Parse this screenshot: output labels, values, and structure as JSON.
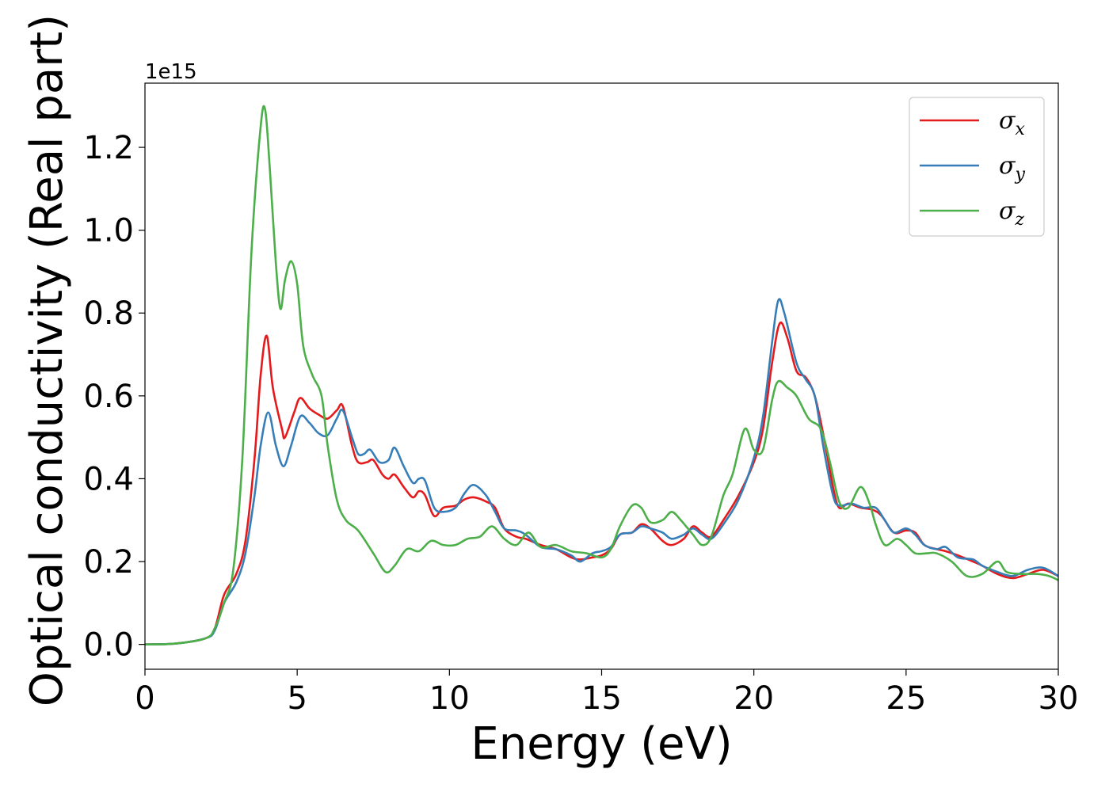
{
  "chart_data": {
    "type": "line",
    "xlabel": "Energy (eV)",
    "ylabel": "Optical conductivity (Real part)",
    "y_offset_label": "1e15",
    "xlim": [
      0,
      30
    ],
    "ylim": [
      -0.06,
      1.355
    ],
    "x_ticks": [
      0,
      5,
      10,
      15,
      20,
      25,
      30
    ],
    "x_tick_labels": [
      "0",
      "5",
      "10",
      "15",
      "20",
      "25",
      "30"
    ],
    "y_ticks": [
      0.0,
      0.2,
      0.4,
      0.6,
      0.8,
      1.0,
      1.2
    ],
    "y_tick_labels": [
      "0.0",
      "0.2",
      "0.4",
      "0.6",
      "0.8",
      "1.0",
      "1.2"
    ],
    "grid": false,
    "legend_position": "top-right",
    "series": [
      {
        "name": "σx",
        "legend_symbol": "σ",
        "legend_subscript": "x",
        "color": "#e41a1c",
        "points": [
          [
            0,
            0
          ],
          [
            1,
            0.002
          ],
          [
            2,
            0.015
          ],
          [
            2.3,
            0.04
          ],
          [
            2.6,
            0.12
          ],
          [
            3.0,
            0.17
          ],
          [
            3.3,
            0.25
          ],
          [
            3.6,
            0.45
          ],
          [
            3.8,
            0.65
          ],
          [
            4.0,
            0.745
          ],
          [
            4.2,
            0.62
          ],
          [
            4.5,
            0.52
          ],
          [
            4.6,
            0.5
          ],
          [
            4.9,
            0.56
          ],
          [
            5.1,
            0.595
          ],
          [
            5.4,
            0.57
          ],
          [
            5.7,
            0.555
          ],
          [
            6.0,
            0.545
          ],
          [
            6.3,
            0.565
          ],
          [
            6.5,
            0.575
          ],
          [
            6.8,
            0.48
          ],
          [
            7.0,
            0.44
          ],
          [
            7.3,
            0.44
          ],
          [
            7.5,
            0.445
          ],
          [
            7.8,
            0.41
          ],
          [
            8.0,
            0.4
          ],
          [
            8.2,
            0.41
          ],
          [
            8.5,
            0.38
          ],
          [
            8.8,
            0.355
          ],
          [
            9.0,
            0.37
          ],
          [
            9.2,
            0.36
          ],
          [
            9.5,
            0.31
          ],
          [
            9.8,
            0.33
          ],
          [
            10.2,
            0.335
          ],
          [
            10.5,
            0.35
          ],
          [
            10.8,
            0.355
          ],
          [
            11.2,
            0.345
          ],
          [
            11.5,
            0.33
          ],
          [
            11.8,
            0.28
          ],
          [
            12.2,
            0.26
          ],
          [
            12.5,
            0.255
          ],
          [
            13.0,
            0.24
          ],
          [
            13.5,
            0.23
          ],
          [
            14.0,
            0.21
          ],
          [
            14.3,
            0.205
          ],
          [
            14.7,
            0.21
          ],
          [
            15.0,
            0.215
          ],
          [
            15.3,
            0.23
          ],
          [
            15.6,
            0.265
          ],
          [
            16.0,
            0.27
          ],
          [
            16.3,
            0.29
          ],
          [
            16.6,
            0.28
          ],
          [
            17.0,
            0.25
          ],
          [
            17.3,
            0.24
          ],
          [
            17.7,
            0.255
          ],
          [
            18.0,
            0.285
          ],
          [
            18.3,
            0.27
          ],
          [
            18.6,
            0.26
          ],
          [
            19.0,
            0.3
          ],
          [
            19.5,
            0.36
          ],
          [
            20.0,
            0.44
          ],
          [
            20.3,
            0.52
          ],
          [
            20.6,
            0.68
          ],
          [
            20.85,
            0.775
          ],
          [
            21.1,
            0.74
          ],
          [
            21.4,
            0.66
          ],
          [
            21.7,
            0.645
          ],
          [
            22.0,
            0.6
          ],
          [
            22.3,
            0.5
          ],
          [
            22.6,
            0.38
          ],
          [
            22.8,
            0.33
          ],
          [
            23.1,
            0.34
          ],
          [
            23.5,
            0.33
          ],
          [
            23.9,
            0.325
          ],
          [
            24.2,
            0.31
          ],
          [
            24.6,
            0.27
          ],
          [
            25.0,
            0.275
          ],
          [
            25.3,
            0.27
          ],
          [
            25.6,
            0.24
          ],
          [
            26.0,
            0.23
          ],
          [
            26.3,
            0.225
          ],
          [
            26.7,
            0.215
          ],
          [
            27.2,
            0.2
          ],
          [
            27.5,
            0.19
          ],
          [
            28.0,
            0.17
          ],
          [
            28.5,
            0.16
          ],
          [
            29.0,
            0.17
          ],
          [
            29.5,
            0.18
          ],
          [
            30,
            0.165
          ]
        ]
      },
      {
        "name": "σy",
        "legend_symbol": "σ",
        "legend_subscript": "y",
        "color": "#377eb8",
        "points": [
          [
            0,
            0
          ],
          [
            1,
            0.002
          ],
          [
            2,
            0.015
          ],
          [
            2.3,
            0.035
          ],
          [
            2.6,
            0.1
          ],
          [
            3.0,
            0.15
          ],
          [
            3.3,
            0.22
          ],
          [
            3.6,
            0.36
          ],
          [
            3.8,
            0.48
          ],
          [
            4.05,
            0.56
          ],
          [
            4.3,
            0.48
          ],
          [
            4.55,
            0.43
          ],
          [
            4.8,
            0.48
          ],
          [
            5.1,
            0.55
          ],
          [
            5.4,
            0.535
          ],
          [
            5.7,
            0.51
          ],
          [
            6.0,
            0.505
          ],
          [
            6.3,
            0.545
          ],
          [
            6.5,
            0.565
          ],
          [
            6.8,
            0.5
          ],
          [
            7.0,
            0.46
          ],
          [
            7.2,
            0.46
          ],
          [
            7.4,
            0.47
          ],
          [
            7.7,
            0.44
          ],
          [
            8.0,
            0.445
          ],
          [
            8.2,
            0.475
          ],
          [
            8.5,
            0.43
          ],
          [
            8.8,
            0.39
          ],
          [
            9.0,
            0.4
          ],
          [
            9.2,
            0.395
          ],
          [
            9.5,
            0.33
          ],
          [
            9.8,
            0.32
          ],
          [
            10.2,
            0.33
          ],
          [
            10.5,
            0.365
          ],
          [
            10.8,
            0.385
          ],
          [
            11.2,
            0.36
          ],
          [
            11.5,
            0.32
          ],
          [
            11.8,
            0.28
          ],
          [
            12.2,
            0.275
          ],
          [
            12.5,
            0.265
          ],
          [
            13.0,
            0.235
          ],
          [
            13.5,
            0.23
          ],
          [
            14.0,
            0.215
          ],
          [
            14.3,
            0.2
          ],
          [
            14.7,
            0.22
          ],
          [
            15.0,
            0.225
          ],
          [
            15.3,
            0.235
          ],
          [
            15.6,
            0.265
          ],
          [
            16.0,
            0.27
          ],
          [
            16.3,
            0.285
          ],
          [
            16.6,
            0.28
          ],
          [
            17.0,
            0.27
          ],
          [
            17.3,
            0.255
          ],
          [
            17.7,
            0.265
          ],
          [
            18.0,
            0.28
          ],
          [
            18.3,
            0.265
          ],
          [
            18.6,
            0.255
          ],
          [
            19.0,
            0.29
          ],
          [
            19.5,
            0.35
          ],
          [
            20.0,
            0.45
          ],
          [
            20.3,
            0.55
          ],
          [
            20.6,
            0.73
          ],
          [
            20.8,
            0.83
          ],
          [
            21.0,
            0.8
          ],
          [
            21.4,
            0.68
          ],
          [
            21.7,
            0.64
          ],
          [
            22.0,
            0.6
          ],
          [
            22.3,
            0.47
          ],
          [
            22.6,
            0.36
          ],
          [
            22.8,
            0.335
          ],
          [
            23.2,
            0.34
          ],
          [
            23.6,
            0.33
          ],
          [
            24.0,
            0.33
          ],
          [
            24.3,
            0.3
          ],
          [
            24.6,
            0.27
          ],
          [
            25.0,
            0.28
          ],
          [
            25.3,
            0.265
          ],
          [
            25.6,
            0.24
          ],
          [
            26.0,
            0.23
          ],
          [
            26.3,
            0.235
          ],
          [
            26.7,
            0.21
          ],
          [
            27.2,
            0.205
          ],
          [
            27.5,
            0.19
          ],
          [
            28.0,
            0.175
          ],
          [
            28.5,
            0.165
          ],
          [
            29.0,
            0.18
          ],
          [
            29.5,
            0.185
          ],
          [
            30,
            0.165
          ]
        ]
      },
      {
        "name": "σz",
        "legend_symbol": "σ",
        "legend_subscript": "z",
        "color": "#4daf4a",
        "points": [
          [
            0,
            0
          ],
          [
            1,
            0.002
          ],
          [
            2,
            0.015
          ],
          [
            2.3,
            0.04
          ],
          [
            2.6,
            0.1
          ],
          [
            2.9,
            0.18
          ],
          [
            3.2,
            0.45
          ],
          [
            3.5,
            0.95
          ],
          [
            3.8,
            1.25
          ],
          [
            3.95,
            1.29
          ],
          [
            4.1,
            1.15
          ],
          [
            4.3,
            0.92
          ],
          [
            4.45,
            0.81
          ],
          [
            4.6,
            0.88
          ],
          [
            4.8,
            0.925
          ],
          [
            5.0,
            0.87
          ],
          [
            5.2,
            0.72
          ],
          [
            5.5,
            0.65
          ],
          [
            5.8,
            0.6
          ],
          [
            6.0,
            0.48
          ],
          [
            6.3,
            0.35
          ],
          [
            6.6,
            0.3
          ],
          [
            7.0,
            0.275
          ],
          [
            7.5,
            0.22
          ],
          [
            7.9,
            0.175
          ],
          [
            8.2,
            0.19
          ],
          [
            8.6,
            0.23
          ],
          [
            9.0,
            0.225
          ],
          [
            9.4,
            0.25
          ],
          [
            9.8,
            0.24
          ],
          [
            10.2,
            0.24
          ],
          [
            10.6,
            0.255
          ],
          [
            11.0,
            0.26
          ],
          [
            11.4,
            0.285
          ],
          [
            11.8,
            0.255
          ],
          [
            12.2,
            0.24
          ],
          [
            12.6,
            0.27
          ],
          [
            13.0,
            0.235
          ],
          [
            13.5,
            0.24
          ],
          [
            14.0,
            0.225
          ],
          [
            14.5,
            0.22
          ],
          [
            15.0,
            0.21
          ],
          [
            15.3,
            0.23
          ],
          [
            15.6,
            0.285
          ],
          [
            16.0,
            0.335
          ],
          [
            16.3,
            0.33
          ],
          [
            16.6,
            0.295
          ],
          [
            17.0,
            0.3
          ],
          [
            17.3,
            0.32
          ],
          [
            17.6,
            0.3
          ],
          [
            18.0,
            0.265
          ],
          [
            18.3,
            0.24
          ],
          [
            18.6,
            0.26
          ],
          [
            19.0,
            0.36
          ],
          [
            19.3,
            0.41
          ],
          [
            19.7,
            0.52
          ],
          [
            20.0,
            0.47
          ],
          [
            20.3,
            0.47
          ],
          [
            20.6,
            0.59
          ],
          [
            20.8,
            0.635
          ],
          [
            21.1,
            0.62
          ],
          [
            21.4,
            0.6
          ],
          [
            21.8,
            0.545
          ],
          [
            22.2,
            0.52
          ],
          [
            22.5,
            0.44
          ],
          [
            22.8,
            0.345
          ],
          [
            23.1,
            0.33
          ],
          [
            23.5,
            0.38
          ],
          [
            23.8,
            0.34
          ],
          [
            24.0,
            0.29
          ],
          [
            24.3,
            0.24
          ],
          [
            24.7,
            0.255
          ],
          [
            25.0,
            0.24
          ],
          [
            25.3,
            0.22
          ],
          [
            25.7,
            0.22
          ],
          [
            26.0,
            0.22
          ],
          [
            26.5,
            0.2
          ],
          [
            27.0,
            0.165
          ],
          [
            27.5,
            0.17
          ],
          [
            28.0,
            0.2
          ],
          [
            28.3,
            0.175
          ],
          [
            28.8,
            0.17
          ],
          [
            29.3,
            0.17
          ],
          [
            29.7,
            0.165
          ],
          [
            30,
            0.155
          ]
        ]
      }
    ]
  }
}
